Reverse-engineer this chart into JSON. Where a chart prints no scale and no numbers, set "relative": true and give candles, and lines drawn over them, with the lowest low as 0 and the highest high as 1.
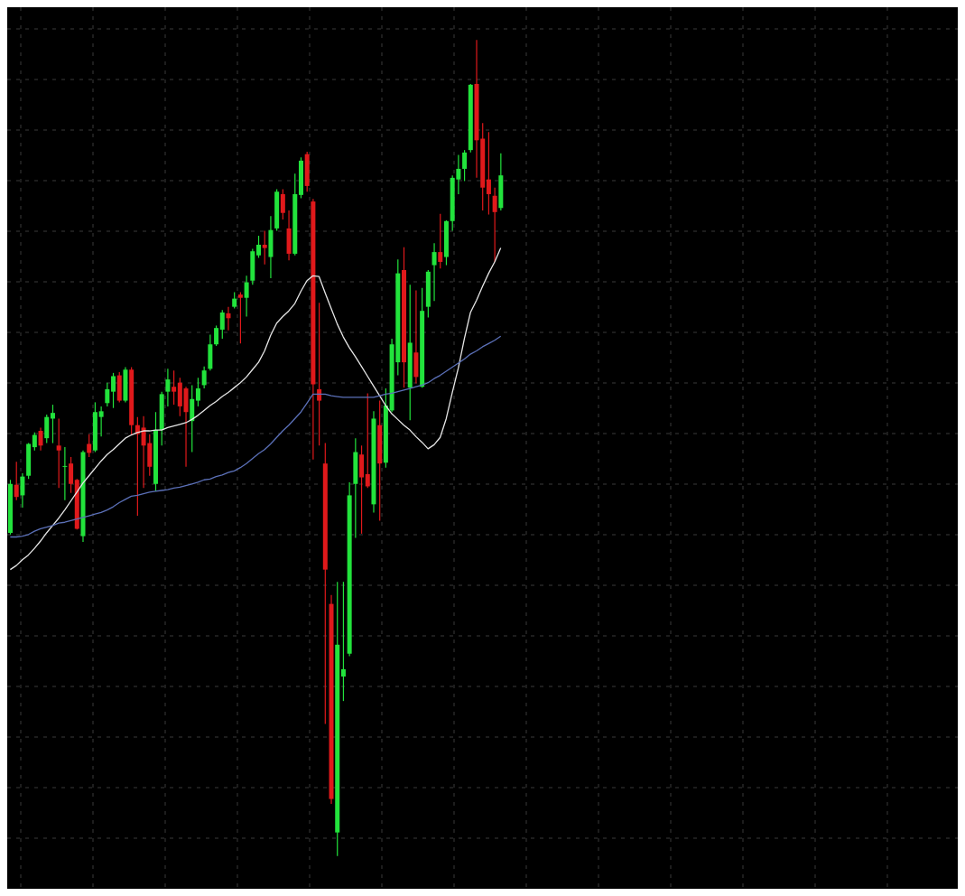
{
  "chart_data": {
    "type": "candlestick",
    "relative": true,
    "grid": true,
    "categories": [
      null,
      null,
      null,
      null,
      null,
      null,
      null,
      null,
      null,
      null,
      null,
      null,
      null,
      null,
      null,
      null,
      null,
      null,
      null,
      null,
      null,
      null,
      null,
      null,
      null,
      null,
      null,
      null,
      null,
      null,
      null,
      null,
      null,
      null,
      null,
      null,
      null,
      null,
      null,
      null,
      null,
      null,
      null,
      null,
      null,
      null,
      null,
      null,
      null,
      null,
      null,
      null,
      null,
      null,
      null,
      null,
      null,
      null,
      null,
      null,
      null,
      null,
      null,
      null,
      null,
      null,
      null,
      null,
      null,
      null,
      null,
      null,
      null,
      null,
      null,
      null,
      null,
      null,
      null,
      null,
      null,
      null
    ],
    "ohlc": [
      [
        0.396,
        0.461,
        0.394,
        0.456
      ],
      [
        0.455,
        0.483,
        0.436,
        0.44
      ],
      [
        0.442,
        0.469,
        0.427,
        0.465
      ],
      [
        0.466,
        0.506,
        0.462,
        0.505
      ],
      [
        0.501,
        0.519,
        0.497,
        0.516
      ],
      [
        0.521,
        0.525,
        0.497,
        0.503
      ],
      [
        0.512,
        0.541,
        0.506,
        0.538
      ],
      [
        0.536,
        0.553,
        0.506,
        0.543
      ],
      [
        0.503,
        0.536,
        0.451,
        0.497
      ],
      [
        0.477,
        0.501,
        0.436,
        0.478
      ],
      [
        0.481,
        0.489,
        0.445,
        0.456
      ],
      [
        0.461,
        0.462,
        0.4,
        0.401
      ],
      [
        0.392,
        0.497,
        0.385,
        0.495
      ],
      [
        0.505,
        0.517,
        0.489,
        0.494
      ],
      [
        0.497,
        0.556,
        0.495,
        0.544
      ],
      [
        0.538,
        0.551,
        0.514,
        0.545
      ],
      [
        0.555,
        0.58,
        0.551,
        0.572
      ],
      [
        0.569,
        0.592,
        0.549,
        0.588
      ],
      [
        0.589,
        0.593,
        0.556,
        0.558
      ],
      [
        0.558,
        0.599,
        0.556,
        0.596
      ],
      [
        0.596,
        0.599,
        0.516,
        0.528
      ],
      [
        0.528,
        0.538,
        0.417,
        0.517
      ],
      [
        0.525,
        0.539,
        0.451,
        0.503
      ],
      [
        0.506,
        0.517,
        0.466,
        0.477
      ],
      [
        0.456,
        0.544,
        0.447,
        0.522
      ],
      [
        0.522,
        0.569,
        0.503,
        0.566
      ],
      [
        0.569,
        0.597,
        0.551,
        0.584
      ],
      [
        0.575,
        0.595,
        0.553,
        0.569
      ],
      [
        0.58,
        0.586,
        0.539,
        0.551
      ],
      [
        0.573,
        0.575,
        0.477,
        0.544
      ],
      [
        0.533,
        0.577,
        0.495,
        0.56
      ],
      [
        0.558,
        0.586,
        0.551,
        0.573
      ],
      [
        0.577,
        0.6,
        0.573,
        0.595
      ],
      [
        0.597,
        0.639,
        0.595,
        0.627
      ],
      [
        0.627,
        0.65,
        0.625,
        0.647
      ],
      [
        0.645,
        0.669,
        0.634,
        0.666
      ],
      [
        0.665,
        0.673,
        0.644,
        0.659
      ],
      [
        0.673,
        0.691,
        0.671,
        0.683
      ],
      [
        0.688,
        0.691,
        0.628,
        0.684
      ],
      [
        0.684,
        0.711,
        0.661,
        0.703
      ],
      [
        0.705,
        0.744,
        0.7,
        0.741
      ],
      [
        0.736,
        0.76,
        0.733,
        0.749
      ],
      [
        0.749,
        0.766,
        0.725,
        0.745
      ],
      [
        0.734,
        0.784,
        0.708,
        0.767
      ],
      [
        0.769,
        0.817,
        0.766,
        0.814
      ],
      [
        0.811,
        0.817,
        0.78,
        0.788
      ],
      [
        0.769,
        0.791,
        0.73,
        0.738
      ],
      [
        0.738,
        0.836,
        0.736,
        0.811
      ],
      [
        0.81,
        0.856,
        0.806,
        0.852
      ],
      [
        0.86,
        0.863,
        0.814,
        0.821
      ],
      [
        0.802,
        0.805,
        0.486,
        0.578
      ],
      [
        0.572,
        0.678,
        0.503,
        0.558
      ],
      [
        0.481,
        0.506,
        0.162,
        0.351
      ],
      [
        0.309,
        0.32,
        0.064,
        0.07
      ],
      [
        0.029,
        0.336,
        0,
        0.259
      ],
      [
        0.22,
        0.336,
        0.19,
        0.229
      ],
      [
        0.248,
        0.458,
        0.245,
        0.442
      ],
      [
        0.456,
        0.512,
        0.39,
        0.495
      ],
      [
        0.492,
        0.503,
        0.395,
        0.464
      ],
      [
        0.468,
        0.567,
        0.451,
        0.453
      ],
      [
        0.431,
        0.545,
        0.421,
        0.536
      ],
      [
        0.528,
        0.558,
        0.411,
        0.481
      ],
      [
        0.482,
        0.573,
        0.476,
        0.552
      ],
      [
        0.546,
        0.634,
        0.544,
        0.627
      ],
      [
        0.605,
        0.731,
        0.589,
        0.714
      ],
      [
        0.718,
        0.746,
        0.574,
        0.605
      ],
      [
        0.574,
        0.7,
        0.534,
        0.629
      ],
      [
        0.617,
        0.693,
        0.579,
        0.587
      ],
      [
        0.575,
        0.696,
        0.574,
        0.668
      ],
      [
        0.673,
        0.718,
        0.66,
        0.716
      ],
      [
        0.724,
        0.751,
        0.68,
        0.74
      ],
      [
        0.74,
        0.787,
        0.72,
        0.728
      ],
      [
        0.734,
        0.779,
        0.724,
        0.778
      ],
      [
        0.778,
        0.834,
        0.766,
        0.831
      ],
      [
        0.829,
        0.859,
        0.811,
        0.842
      ],
      [
        0.842,
        0.865,
        0.827,
        0.862
      ],
      [
        0.865,
        0.946,
        0.862,
        0.945
      ],
      [
        0.946,
        1,
        0.831,
        0.877
      ],
      [
        0.879,
        0.898,
        0.791,
        0.819
      ],
      [
        0.829,
        0.887,
        0.786,
        0.811
      ],
      [
        0.809,
        0.819,
        0.728,
        0.789
      ],
      [
        0.794,
        0.861,
        0.791,
        0.834
      ]
    ],
    "colors": [
      "#22e33c",
      "#e0191b",
      "#22e33c",
      "#22e33c",
      "#22e33c",
      "#e0191b",
      "#22e33c",
      "#22e33c",
      "#e0191b",
      "#22e33c",
      "#e0191b",
      "#e0191b",
      "#22e33c",
      "#e0191b",
      "#22e33c",
      "#22e33c",
      "#22e33c",
      "#22e33c",
      "#e0191b",
      "#22e33c",
      "#e0191b",
      "#e0191b",
      "#e0191b",
      "#e0191b",
      "#22e33c",
      "#22e33c",
      "#22e33c",
      "#e0191b",
      "#e0191b",
      "#e0191b",
      "#22e33c",
      "#22e33c",
      "#22e33c",
      "#22e33c",
      "#22e33c",
      "#22e33c",
      "#e0191b",
      "#22e33c",
      "#e0191b",
      "#22e33c",
      "#22e33c",
      "#22e33c",
      "#e0191b",
      "#22e33c",
      "#22e33c",
      "#e0191b",
      "#e0191b",
      "#22e33c",
      "#22e33c",
      "#e0191b",
      "#e0191b",
      "#e0191b",
      "#e0191b",
      "#e0191b",
      "#22e33c",
      "#22e33c",
      "#22e33c",
      "#22e33c",
      "#e0191b",
      "#e0191b",
      "#22e33c",
      "#e0191b",
      "#22e33c",
      "#22e33c",
      "#22e33c",
      "#e0191b",
      "#22e33c",
      "#e0191b",
      "#22e33c",
      "#22e33c",
      "#22e33c",
      "#e0191b",
      "#22e33c",
      "#22e33c",
      "#22e33c",
      "#22e33c",
      "#22e33c",
      "#e0191b",
      "#e0191b",
      "#e0191b",
      "#e0191b",
      "#22e33c"
    ],
    "series": [
      {
        "type": "line",
        "color": "#e6e6e6",
        "values": [
          0.351,
          0.356,
          0.363,
          0.369,
          0.377,
          0.386,
          0.396,
          0.405,
          0.414,
          0.424,
          0.435,
          0.446,
          0.457,
          0.466,
          0.475,
          0.484,
          0.492,
          0.498,
          0.505,
          0.512,
          0.516,
          0.519,
          0.521,
          0.521,
          0.522,
          0.522,
          0.525,
          0.527,
          0.529,
          0.531,
          0.535,
          0.54,
          0.546,
          0.552,
          0.557,
          0.563,
          0.568,
          0.574,
          0.58,
          0.587,
          0.596,
          0.605,
          0.619,
          0.638,
          0.653,
          0.661,
          0.668,
          0.677,
          0.692,
          0.705,
          0.711,
          0.71,
          0.69,
          0.671,
          0.652,
          0.636,
          0.623,
          0.612,
          0.6,
          0.588,
          0.576,
          0.564,
          0.552,
          0.542,
          0.535,
          0.528,
          0.522,
          0.514,
          0.507,
          0.499,
          0.504,
          0.513,
          0.536,
          0.568,
          0.598,
          0.634,
          0.666,
          0.681,
          0.698,
          0.714,
          0.728,
          0.745
        ]
      },
      {
        "type": "line",
        "color": "#5b70b8",
        "values": [
          0.391,
          0.391,
          0.392,
          0.394,
          0.398,
          0.401,
          0.403,
          0.405,
          0.408,
          0.409,
          0.411,
          0.413,
          0.415,
          0.417,
          0.419,
          0.421,
          0.424,
          0.428,
          0.433,
          0.437,
          0.441,
          0.442,
          0.444,
          0.446,
          0.447,
          0.448,
          0.449,
          0.451,
          0.452,
          0.454,
          0.456,
          0.458,
          0.461,
          0.462,
          0.465,
          0.467,
          0.47,
          0.472,
          0.476,
          0.481,
          0.487,
          0.493,
          0.498,
          0.505,
          0.513,
          0.521,
          0.528,
          0.536,
          0.544,
          0.555,
          0.566,
          0.566,
          0.566,
          0.564,
          0.563,
          0.562,
          0.562,
          0.562,
          0.562,
          0.562,
          0.562,
          0.564,
          0.566,
          0.567,
          0.569,
          0.571,
          0.573,
          0.575,
          0.577,
          0.58,
          0.585,
          0.589,
          0.594,
          0.599,
          0.604,
          0.609,
          0.615,
          0.619,
          0.624,
          0.628,
          0.632,
          0.637
        ]
      }
    ]
  }
}
